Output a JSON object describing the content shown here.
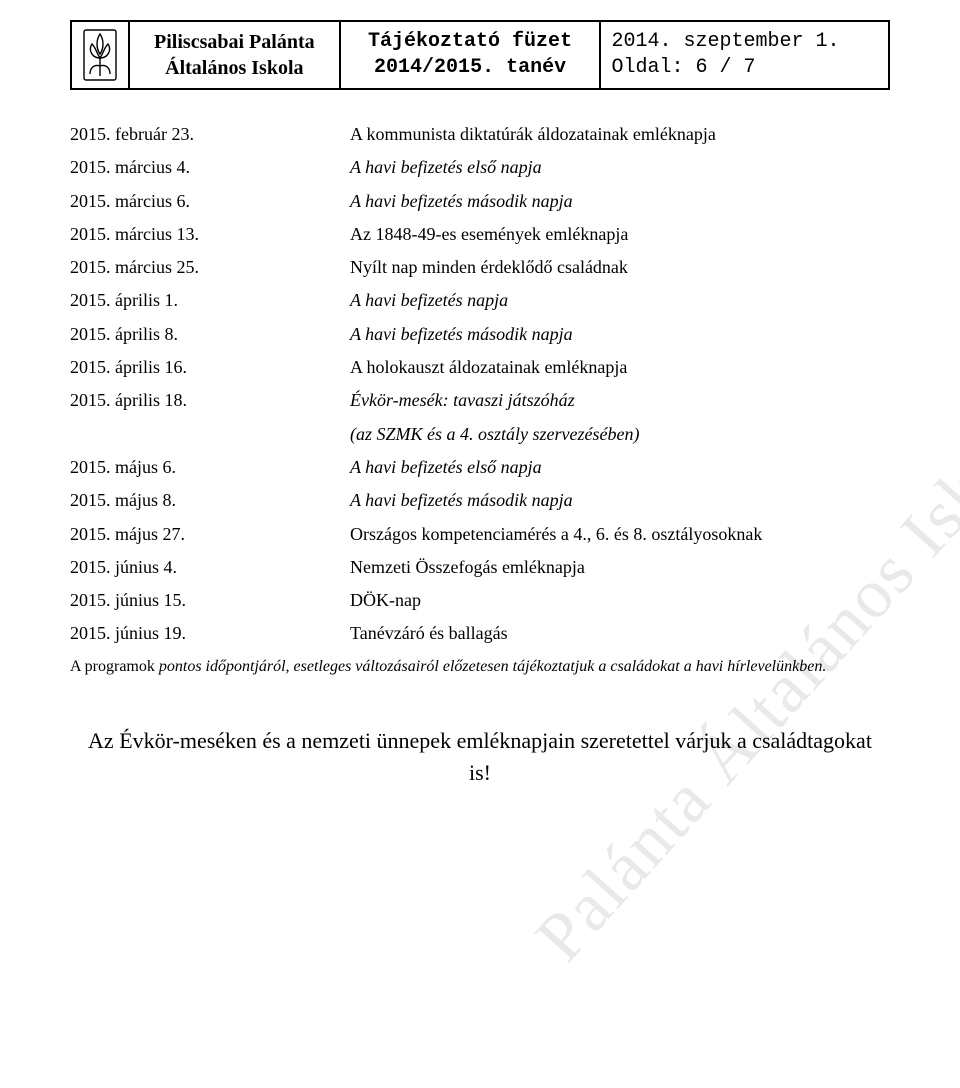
{
  "header": {
    "school_line1": "Piliscsabai Palánta",
    "school_line2": "Általános Iskola",
    "booklet_line1": "Tájékoztató füzet",
    "booklet_line2": "2014/2015. tanév",
    "date": "2014. szeptember 1.",
    "page_label": "Oldal: 6 / 7"
  },
  "watermark": "Palánta Általános Iskola",
  "events": [
    {
      "date": "2015. február 23.",
      "desc": "A kommunista diktatúrák áldozatainak emléknapja",
      "italic": false
    },
    {
      "date": "2015. március 4.",
      "desc": "A havi befizetés első napja",
      "italic": true
    },
    {
      "date": "2015. március 6.",
      "desc": "A havi befizetés második napja",
      "italic": true
    },
    {
      "date": "2015. március 13.",
      "desc": "Az 1848-49-es események emléknapja",
      "italic": false
    },
    {
      "date": "2015. március 25.",
      "desc": "Nyílt nap minden érdeklődő családnak",
      "italic": false
    },
    {
      "date": "2015. április 1.",
      "desc": "A havi befizetés napja",
      "italic": true
    },
    {
      "date": "2015. április 8.",
      "desc": "A havi befizetés második napja",
      "italic": true
    },
    {
      "date": "2015. április 16.",
      "desc": "A holokauszt  áldozatainak emléknapja",
      "italic": false
    },
    {
      "date": "2015. április 18.",
      "desc": "Évkör-mesék: tavaszi játszóház",
      "italic": true
    },
    {
      "date": "",
      "desc": "(az SZMK és a 4. osztály szervezésében)",
      "italic": true,
      "indent": true
    },
    {
      "date": "2015. május 6.",
      "desc": "A havi befizetés első napja",
      "italic": true
    },
    {
      "date": "2015. május 8.",
      "desc": "A havi befizetés második napja",
      "italic": true
    },
    {
      "date": "2015. május 27.",
      "desc": "Országos kompetenciamérés a 4., 6. és 8. osztályosoknak",
      "italic": false
    },
    {
      "date": "2015. június 4.",
      "desc": "Nemzeti Összefogás emléknapja",
      "italic": false
    },
    {
      "date": "2015. június 15.",
      "desc": "DÖK-nap",
      "italic": false
    },
    {
      "date": "2015. június 19.",
      "desc": "Tanévzáró és ballagás",
      "italic": false
    }
  ],
  "footer_note_lead": "A programok ",
  "footer_note_rest": "pontos időpontjáról, esetleges változásairól előzetesen tájékoztatjuk a családokat a havi hírlevelünkben.",
  "closing": "Az Évkör-meséken és a nemzeti ünnepek emléknapjain szeretettel várjuk a családtagokat is!",
  "colors": {
    "text": "#000000",
    "background": "#ffffff",
    "watermark": "#e9e9e9",
    "border": "#000000"
  },
  "typography": {
    "body_fontsize_pt": 14,
    "closing_fontsize_pt": 17,
    "header_fontsize_pt": 15
  }
}
